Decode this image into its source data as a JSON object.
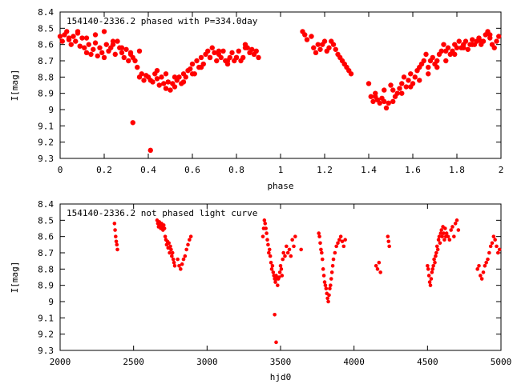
{
  "chart_data": [
    {
      "type": "scatter",
      "title": "154140-2336.2 phased with P=334.0day",
      "xlabel": "phase",
      "ylabel": "I[mag]",
      "xlim": [
        0,
        2
      ],
      "ylim": [
        8.4,
        9.3
      ],
      "y_inverted": true,
      "xticks": [
        0,
        0.2,
        0.4,
        0.6,
        0.8,
        1,
        1.2,
        1.4,
        1.6,
        1.8,
        2
      ],
      "xtick_labels": [
        "0",
        "0.2",
        "0.4",
        "0.6",
        "0.8",
        "1",
        "1.2",
        "1.4",
        "1.6",
        "1.8",
        "2"
      ],
      "yticks": [
        8.4,
        8.5,
        8.6,
        8.7,
        8.8,
        8.9,
        9.0,
        9.1,
        9.2,
        9.3
      ],
      "ytick_labels": [
        "8.4",
        "8.5",
        "8.6",
        "8.7",
        "8.8",
        "8.9",
        "9",
        "9.1",
        "9.2",
        "9.3"
      ],
      "grid": false,
      "marker_color": "#ff0000",
      "series": [
        {
          "x": [
            0.0,
            0.01,
            0.02,
            0.03,
            0.04,
            0.05,
            0.06,
            0.07,
            0.08,
            0.09,
            0.1,
            0.11,
            0.12,
            0.13,
            0.14,
            0.15,
            0.16,
            0.17,
            0.18,
            0.19,
            0.2,
            0.21,
            0.22,
            0.23,
            0.24,
            0.25,
            0.26,
            0.27,
            0.28,
            0.29,
            0.3,
            0.31,
            0.32,
            0.33,
            0.34,
            0.35,
            0.36,
            0.37,
            0.38,
            0.39,
            0.4,
            0.41,
            0.42,
            0.43,
            0.44,
            0.45,
            0.46,
            0.47,
            0.48,
            0.49,
            0.5,
            0.51,
            0.52,
            0.53,
            0.54,
            0.55,
            0.56,
            0.57,
            0.58,
            0.59,
            0.6,
            0.61,
            0.62,
            0.63,
            0.64,
            0.65,
            0.66,
            0.67,
            0.68,
            0.69,
            0.7,
            0.71,
            0.72,
            0.73,
            0.74,
            0.75,
            0.76,
            0.77,
            0.78,
            0.79,
            0.8,
            0.81,
            0.82,
            0.83,
            0.84,
            0.85,
            0.86,
            0.87,
            0.88,
            0.89,
            0.9,
            0.04,
            0.08,
            0.12,
            0.16,
            0.2,
            0.24,
            0.28,
            0.32,
            0.36,
            0.44,
            0.48,
            0.52,
            0.56,
            0.6,
            0.64,
            0.68,
            0.72,
            0.76,
            0.8,
            0.84,
            0.88,
            0.33,
            0.41,
            1.1,
            1.11,
            1.12,
            1.14,
            1.15,
            1.16,
            1.17,
            1.18,
            1.19,
            1.2,
            1.21,
            1.22,
            1.23,
            1.24,
            1.25,
            1.26,
            1.27,
            1.28,
            1.29,
            1.3,
            1.31,
            1.32,
            1.4,
            1.41,
            1.42,
            1.43,
            1.44,
            1.45,
            1.46,
            1.47,
            1.48,
            1.49,
            1.5,
            1.51,
            1.52,
            1.53,
            1.54,
            1.55,
            1.56,
            1.57,
            1.58,
            1.59,
            1.6,
            1.61,
            1.62,
            1.63,
            1.64,
            1.65,
            1.66,
            1.67,
            1.68,
            1.69,
            1.7,
            1.71,
            1.72,
            1.73,
            1.74,
            1.75,
            1.76,
            1.77,
            1.78,
            1.79,
            1.8,
            1.81,
            1.82,
            1.83,
            1.84,
            1.85,
            1.86,
            1.87,
            1.88,
            1.89,
            1.9,
            1.91,
            1.92,
            1.93,
            1.94,
            1.95,
            1.96,
            1.97,
            1.98,
            1.99,
            1.43,
            1.47,
            1.51,
            1.55,
            1.59,
            1.63,
            1.67,
            1.71,
            1.75,
            1.79,
            1.83,
            1.87,
            1.91,
            1.95
          ],
          "y": [
            8.55,
            8.58,
            8.54,
            8.52,
            8.56,
            8.6,
            8.55,
            8.58,
            8.53,
            8.61,
            8.56,
            8.62,
            8.65,
            8.6,
            8.66,
            8.63,
            8.59,
            8.67,
            8.62,
            8.65,
            8.68,
            8.6,
            8.64,
            8.62,
            8.6,
            8.66,
            8.58,
            8.62,
            8.65,
            8.68,
            8.63,
            8.7,
            8.65,
            8.68,
            8.7,
            8.74,
            8.8,
            8.78,
            8.82,
            8.79,
            8.8,
            8.82,
            8.83,
            8.78,
            8.81,
            8.85,
            8.8,
            8.84,
            8.87,
            8.83,
            8.88,
            8.84,
            8.86,
            8.82,
            8.8,
            8.84,
            8.78,
            8.8,
            8.76,
            8.75,
            8.72,
            8.78,
            8.7,
            8.74,
            8.68,
            8.72,
            8.66,
            8.64,
            8.68,
            8.62,
            8.65,
            8.7,
            8.66,
            8.68,
            8.64,
            8.7,
            8.72,
            8.68,
            8.65,
            8.7,
            8.68,
            8.64,
            8.7,
            8.68,
            8.6,
            8.62,
            8.65,
            8.63,
            8.66,
            8.64,
            8.68,
            8.57,
            8.52,
            8.56,
            8.54,
            8.52,
            8.58,
            8.62,
            8.66,
            8.64,
            8.76,
            8.78,
            8.8,
            8.83,
            8.78,
            8.74,
            8.68,
            8.64,
            8.7,
            8.68,
            8.62,
            8.66,
            9.08,
            9.25,
            8.52,
            8.54,
            8.57,
            8.55,
            8.62,
            8.65,
            8.6,
            8.63,
            8.6,
            8.58,
            8.64,
            8.62,
            8.58,
            8.6,
            8.63,
            8.66,
            8.68,
            8.7,
            8.72,
            8.74,
            8.76,
            8.78,
            8.84,
            8.92,
            8.95,
            8.9,
            8.94,
            8.96,
            8.93,
            8.95,
            8.99,
            8.96,
            8.85,
            8.88,
            8.92,
            8.9,
            8.87,
            8.84,
            8.8,
            8.86,
            8.82,
            8.78,
            8.84,
            8.8,
            8.76,
            8.74,
            8.72,
            8.7,
            8.66,
            8.74,
            8.7,
            8.68,
            8.72,
            8.7,
            8.66,
            8.64,
            8.6,
            8.64,
            8.62,
            8.66,
            8.64,
            8.6,
            8.62,
            8.58,
            8.62,
            8.6,
            8.58,
            8.63,
            8.6,
            8.57,
            8.6,
            8.58,
            8.56,
            8.6,
            8.58,
            8.54,
            8.52,
            8.56,
            8.6,
            8.62,
            8.58,
            8.55,
            8.92,
            8.88,
            8.95,
            8.9,
            8.86,
            8.82,
            8.78,
            8.74,
            8.7,
            8.66,
            8.62,
            8.6,
            8.58,
            8.54
          ]
        }
      ]
    },
    {
      "type": "scatter",
      "title": "154140-2336.2 not phased light curve",
      "xlabel": "hjd0",
      "ylabel": "I[mag]",
      "xlim": [
        2000,
        5000
      ],
      "ylim": [
        8.4,
        9.3
      ],
      "y_inverted": true,
      "xticks": [
        2000,
        2500,
        3000,
        3500,
        4000,
        4500,
        5000
      ],
      "xtick_labels": [
        "2000",
        "2500",
        "3000",
        "3500",
        "4000",
        "4500",
        "5000"
      ],
      "yticks": [
        8.4,
        8.5,
        8.6,
        8.7,
        8.8,
        8.9,
        9.0,
        9.1,
        9.2,
        9.3
      ],
      "ytick_labels": [
        "8.4",
        "8.5",
        "8.6",
        "8.7",
        "8.8",
        "8.9",
        "9",
        "9.1",
        "9.2",
        "9.3"
      ],
      "grid": false,
      "marker_color": "#ff0000",
      "series": [
        {
          "x": [
            2370,
            2374,
            2378,
            2382,
            2386,
            2390,
            2660,
            2665,
            2670,
            2675,
            2680,
            2685,
            2690,
            2695,
            2700,
            2705,
            2710,
            2715,
            2720,
            2725,
            2730,
            2735,
            2740,
            2745,
            2750,
            2755,
            2760,
            2765,
            2770,
            2775,
            2780,
            2800,
            2810,
            2820,
            2830,
            2840,
            2850,
            2860,
            2870,
            2880,
            2890,
            3380,
            3385,
            3390,
            3395,
            3400,
            3405,
            3410,
            3415,
            3420,
            3425,
            3430,
            3435,
            3440,
            3445,
            3450,
            3455,
            3460,
            3465,
            3470,
            3475,
            3480,
            3485,
            3490,
            3495,
            3500,
            3505,
            3510,
            3515,
            3520,
            3530,
            3540,
            3550,
            3560,
            3570,
            3580,
            3590,
            3600,
            3640,
            3460,
            3470,
            3760,
            3765,
            3770,
            3775,
            3780,
            3785,
            3790,
            3795,
            3800,
            3805,
            3810,
            3815,
            3820,
            3825,
            3830,
            3835,
            3840,
            3845,
            3850,
            3855,
            3860,
            3870,
            3880,
            3890,
            3900,
            3910,
            3920,
            3930,
            3940,
            4150,
            4160,
            4170,
            4180,
            4230,
            4235,
            4240,
            4500,
            4505,
            4510,
            4515,
            4520,
            4525,
            4530,
            4535,
            4540,
            4545,
            4550,
            4555,
            4560,
            4565,
            4570,
            4575,
            4580,
            4585,
            4590,
            4595,
            4600,
            4605,
            4610,
            4615,
            4620,
            4625,
            4630,
            4640,
            4650,
            4660,
            4670,
            4680,
            4690,
            4700,
            4710,
            4840,
            4850,
            4860,
            4870,
            4880,
            4890,
            4900,
            4910,
            4920,
            4930,
            4940,
            4950,
            4960,
            4970,
            4980,
            4990
          ],
          "y": [
            8.52,
            8.56,
            8.6,
            8.63,
            8.65,
            8.68,
            8.5,
            8.52,
            8.54,
            8.51,
            8.53,
            8.55,
            8.52,
            8.54,
            8.56,
            8.53,
            8.55,
            8.6,
            8.62,
            8.65,
            8.63,
            8.67,
            8.64,
            8.7,
            8.66,
            8.68,
            8.72,
            8.7,
            8.74,
            8.76,
            8.78,
            8.74,
            8.78,
            8.8,
            8.77,
            8.74,
            8.72,
            8.68,
            8.65,
            8.62,
            8.6,
            8.6,
            8.55,
            8.5,
            8.52,
            8.55,
            8.58,
            8.62,
            8.65,
            8.7,
            8.68,
            8.72,
            8.76,
            8.8,
            8.78,
            8.82,
            8.84,
            8.86,
            8.88,
            8.84,
            8.86,
            8.9,
            8.86,
            8.85,
            8.82,
            8.78,
            8.8,
            8.84,
            8.74,
            8.7,
            8.72,
            8.66,
            8.7,
            8.68,
            8.72,
            8.62,
            8.66,
            8.6,
            8.68,
            9.08,
            9.25,
            8.58,
            8.6,
            8.64,
            8.68,
            8.7,
            8.74,
            8.8,
            8.84,
            8.88,
            8.9,
            8.92,
            8.95,
            8.98,
            9.0,
            8.96,
            8.92,
            8.9,
            8.86,
            8.82,
            8.78,
            8.74,
            8.7,
            8.66,
            8.64,
            8.62,
            8.6,
            8.63,
            8.66,
            8.62,
            8.78,
            8.8,
            8.76,
            8.82,
            8.6,
            8.63,
            8.66,
            8.78,
            8.8,
            8.84,
            8.88,
            8.9,
            8.86,
            8.82,
            8.8,
            8.78,
            8.74,
            8.76,
            8.72,
            8.7,
            8.66,
            8.68,
            8.62,
            8.6,
            8.64,
            8.58,
            8.56,
            8.6,
            8.54,
            8.58,
            8.62,
            8.55,
            8.6,
            8.58,
            8.6,
            8.62,
            8.56,
            8.54,
            8.6,
            8.52,
            8.5,
            8.56,
            8.8,
            8.78,
            8.84,
            8.86,
            8.82,
            8.78,
            8.76,
            8.74,
            8.7,
            8.66,
            8.64,
            8.6,
            8.62,
            8.66,
            8.7,
            8.68
          ]
        }
      ]
    }
  ]
}
